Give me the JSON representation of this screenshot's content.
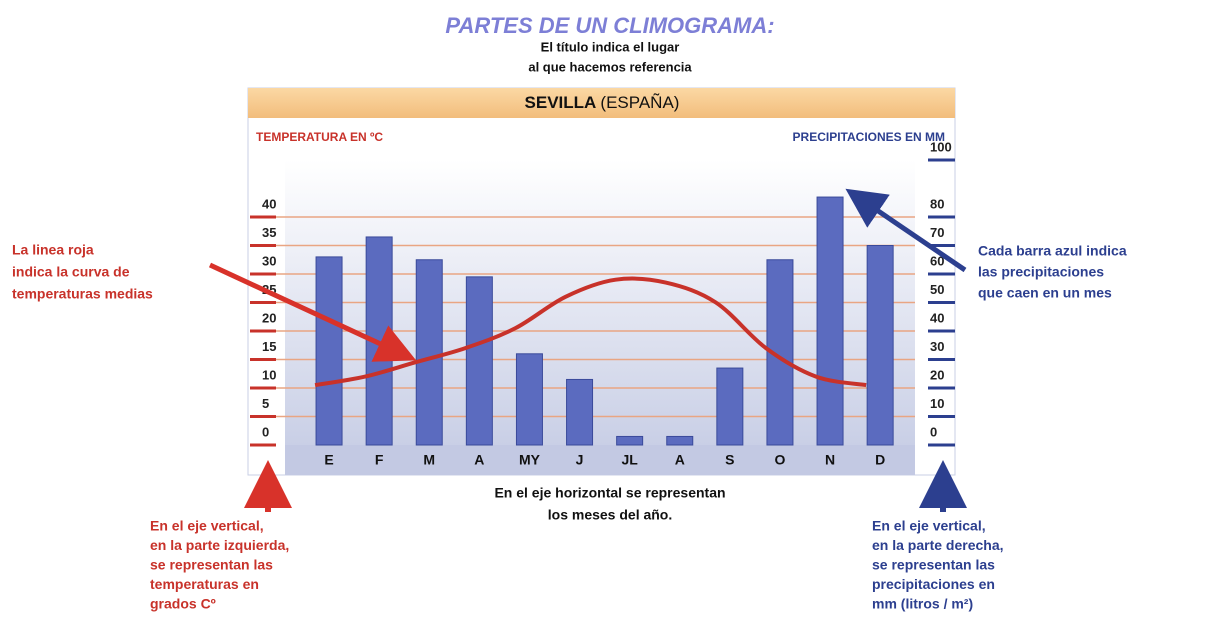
{
  "chart_data": {
    "type": "climograph",
    "heading": "PARTES DE UN CLIMOGRAMA:",
    "title_note": [
      "El título indica el lugar",
      "al que hacemos referencia"
    ],
    "title": "SEVILLA",
    "title_suffix": "(ESPAÑA)",
    "y_label": "TEMPERATURA EN ºC",
    "y2_label": "PRECIPITACIONES EN MM",
    "categories": [
      "E",
      "F",
      "M",
      "A",
      "MY",
      "J",
      "JL",
      "A",
      "S",
      "O",
      "N",
      "D"
    ],
    "series": [
      {
        "type": "bar",
        "axis": "y2",
        "color": "#5b6bbf",
        "values": [
          66,
          73,
          65,
          59,
          32,
          23,
          3,
          3,
          27,
          65,
          87,
          70
        ]
      },
      {
        "type": "line",
        "color": "#c8322a",
        "values": [
          10.5,
          12,
          14.5,
          17,
          20.5,
          26,
          29,
          28.5,
          25,
          17,
          12,
          10.5
        ]
      }
    ],
    "ylim": [
      0,
      50
    ],
    "yticks": [
      0,
      5,
      10,
      15,
      20,
      25,
      30,
      35,
      40
    ],
    "y2lim": [
      0,
      100
    ],
    "y2ticks": [
      0,
      10,
      20,
      30,
      40,
      50,
      60,
      70,
      80,
      100
    ],
    "grid": true,
    "annotations": {
      "line_note": [
        "La linea roja",
        "indica la curva de",
        "temperaturas medias"
      ],
      "bar_note": [
        "Cada barra azul indica",
        "las precipitaciones",
        "que caen en un mes"
      ],
      "x_note": [
        "En el eje horizontal se representan",
        "los meses del año."
      ],
      "y_note": [
        "En el eje vertical,",
        "en la parte izquierda,",
        "se representan las",
        "temperaturas en",
        "grados Cº"
      ],
      "y2_note": [
        "En el eje vertical,",
        "en la parte derecha,",
        "se representan las",
        "precipitaciones en",
        "mm (litros / m²)"
      ]
    }
  }
}
